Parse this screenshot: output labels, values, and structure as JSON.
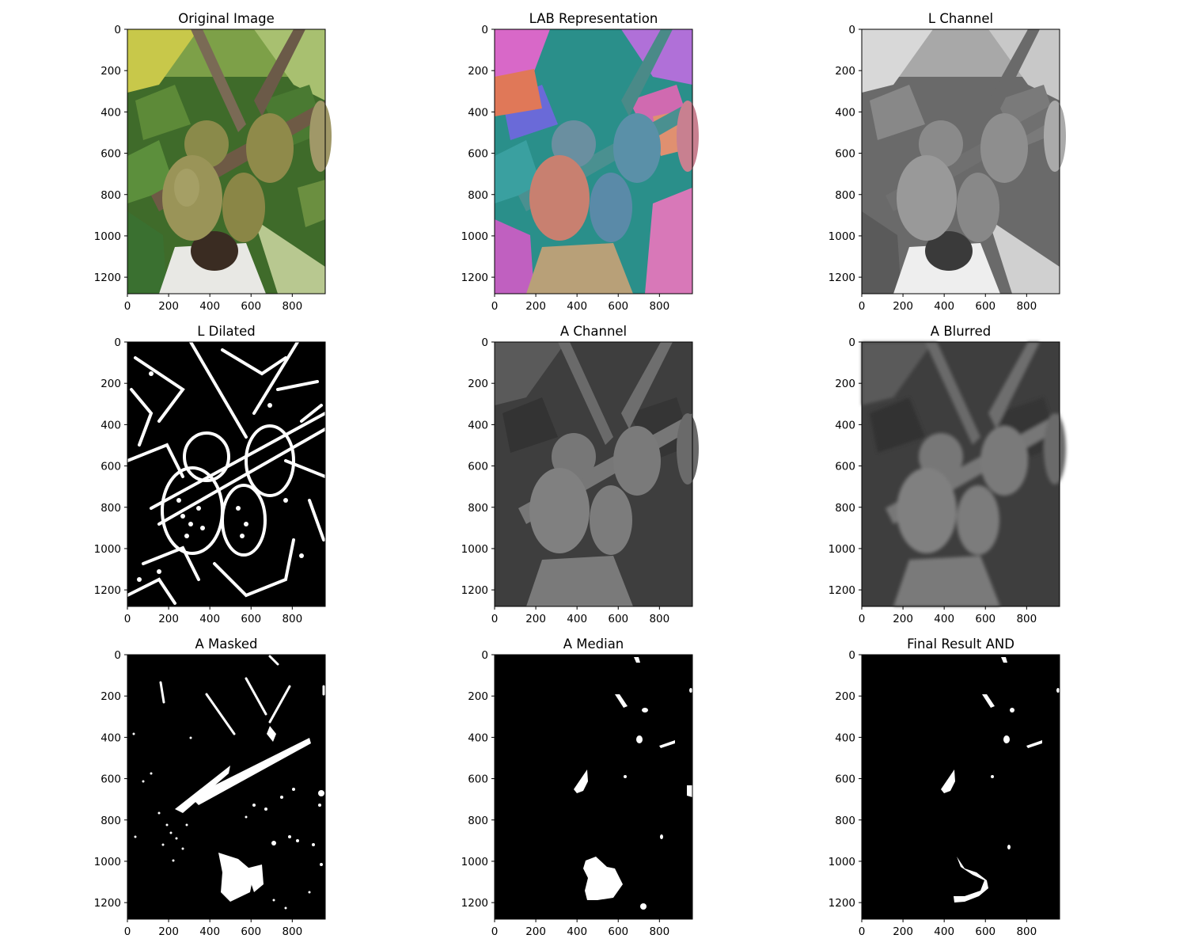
{
  "figure": {
    "panels": [
      {
        "title": "Original Image",
        "style": "photo"
      },
      {
        "title": "LAB Representation",
        "style": "lab"
      },
      {
        "title": "L Channel",
        "style": "gray"
      },
      {
        "title": "L Dilated",
        "style": "dilated"
      },
      {
        "title": "A Channel",
        "style": "achannel"
      },
      {
        "title": "A Blurred",
        "style": "ablurred"
      },
      {
        "title": "A Masked",
        "style": "masked"
      },
      {
        "title": "A Median",
        "style": "median"
      },
      {
        "title": "Final Result AND",
        "style": "final"
      }
    ],
    "x_ticks": [
      "0",
      "200",
      "400",
      "600",
      "800"
    ],
    "y_ticks": [
      "0",
      "200",
      "400",
      "600",
      "800",
      "1000",
      "1200"
    ],
    "x_tick_values": [
      0,
      200,
      400,
      600,
      800
    ],
    "y_tick_values": [
      0,
      200,
      400,
      600,
      800,
      1000,
      1200
    ],
    "image_width": 960,
    "image_height": 1280,
    "colors": {
      "foliage": "#3f6b2a",
      "kiwi": "#8f8a4a",
      "branch": "#6e5a45",
      "lab_magenta": "#d868c8",
      "lab_teal": "#2a8f8a",
      "mask_white": "#ffffff",
      "mask_black": "#000000"
    }
  }
}
